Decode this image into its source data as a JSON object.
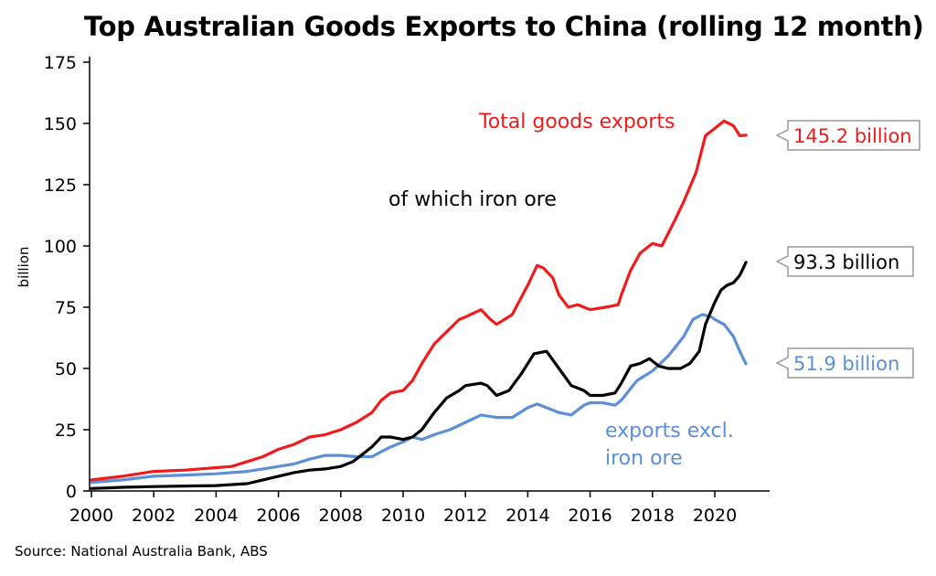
{
  "title": "Top Australian Goods Exports to China (rolling 12 month)",
  "source": "Source: National Australia Bank, ABS",
  "chart_data": {
    "type": "line",
    "ylabel": "billion",
    "xlabel": "",
    "xlim": [
      2000,
      2021.3
    ],
    "ylim": [
      0,
      180
    ],
    "x_ticks": [
      "2000",
      "2002",
      "2004",
      "2006",
      "2008",
      "2010",
      "2012",
      "2014",
      "2016",
      "2018",
      "2020"
    ],
    "y_ticks": [
      "0",
      "25",
      "50",
      "75",
      "100",
      "125",
      "150",
      "175"
    ],
    "grid": false,
    "series": [
      {
        "name": "Total goods exports",
        "color": "#ee1c1c",
        "end_label": "145.2 billion",
        "x": [
          2000,
          2001,
          2002,
          2003,
          2004,
          2004.5,
          2005,
          2005.5,
          2006,
          2006.5,
          2007,
          2007.5,
          2008,
          2008.5,
          2009,
          2009.3,
          2009.6,
          2010,
          2010.3,
          2010.6,
          2011,
          2011.4,
          2011.8,
          2012,
          2012.5,
          2012.8,
          2013,
          2013.5,
          2014,
          2014.3,
          2014.5,
          2014.8,
          2015,
          2015.3,
          2015.6,
          2016,
          2016.5,
          2016.9,
          2017,
          2017.3,
          2017.6,
          2018,
          2018.3,
          2018.7,
          2019,
          2019.4,
          2019.7,
          2020,
          2020.3,
          2020.6,
          2020.8,
          2021
        ],
        "y": [
          4.5,
          6,
          8,
          8.5,
          9.5,
          10,
          12,
          14,
          17,
          19,
          22,
          23,
          25,
          28,
          32,
          37,
          40,
          41,
          45,
          52,
          60,
          65,
          70,
          71,
          74,
          70,
          68,
          72,
          84,
          92,
          91,
          87,
          80,
          75,
          76,
          74,
          75,
          76,
          80,
          90,
          97,
          101,
          100,
          110,
          118,
          130,
          145,
          148,
          151,
          149,
          145,
          145.2
        ]
      },
      {
        "name": "of which iron ore",
        "color": "#000000",
        "end_label": "93.3 billion",
        "x": [
          2000,
          2001,
          2002,
          2003,
          2004,
          2005,
          2005.5,
          2006,
          2006.5,
          2007,
          2007.5,
          2008,
          2008.4,
          2008.8,
          2009,
          2009.3,
          2009.6,
          2010,
          2010.3,
          2010.6,
          2011,
          2011.4,
          2011.8,
          2012,
          2012.5,
          2012.7,
          2013,
          2013.4,
          2013.8,
          2014.2,
          2014.6,
          2015,
          2015.4,
          2015.8,
          2016,
          2016.4,
          2016.8,
          2017,
          2017.3,
          2017.6,
          2017.9,
          2018.2,
          2018.5,
          2018.9,
          2019.2,
          2019.5,
          2019.7,
          2020,
          2020.2,
          2020.4,
          2020.6,
          2020.8,
          2021
        ],
        "y": [
          1,
          1.5,
          1.8,
          2,
          2.2,
          3,
          4.5,
          6,
          7.5,
          8.5,
          9,
          10,
          12,
          16,
          18,
          22,
          22,
          21,
          22,
          25,
          32,
          38,
          41,
          43,
          44,
          43,
          39,
          41,
          48,
          56,
          57,
          50,
          43,
          41,
          39,
          39,
          40,
          44,
          51,
          52,
          54,
          51,
          50,
          50,
          52,
          57,
          68,
          77,
          82,
          84,
          85,
          88,
          93.3
        ]
      },
      {
        "name": "exports excl. iron ore",
        "color": "#5b8fd6",
        "end_label": "51.9 billion",
        "x": [
          2000,
          2001,
          2002,
          2003,
          2004,
          2005,
          2005.5,
          2006,
          2006.5,
          2007,
          2007.5,
          2008,
          2008.5,
          2009,
          2009.3,
          2009.6,
          2010,
          2010.3,
          2010.6,
          2011,
          2011.5,
          2012,
          2012.5,
          2013,
          2013.5,
          2014,
          2014.3,
          2014.6,
          2015,
          2015.4,
          2015.8,
          2016,
          2016.4,
          2016.8,
          2017,
          2017.5,
          2018,
          2018.5,
          2019,
          2019.3,
          2019.6,
          2019.9,
          2020,
          2020.3,
          2020.6,
          2020.8,
          2021
        ],
        "y": [
          3.5,
          4.5,
          6,
          6.5,
          7,
          8,
          9,
          10,
          11,
          13,
          14.5,
          14.5,
          14,
          14,
          16,
          18,
          20,
          22,
          21,
          23,
          25,
          28,
          31,
          30,
          30,
          34,
          35.5,
          34,
          32,
          31,
          35,
          36,
          36,
          35,
          37,
          45,
          49,
          55,
          63,
          70,
          72,
          71,
          70,
          68,
          63,
          57,
          51.9
        ]
      }
    ],
    "annotations": [
      {
        "text": "Total goods exports",
        "color": "#ee1c1c"
      },
      {
        "text": "of which iron ore",
        "color": "#000000"
      },
      {
        "text": "exports excl.",
        "color": "#5b8fd6"
      },
      {
        "text": "iron ore",
        "color": "#5b8fd6"
      }
    ]
  }
}
